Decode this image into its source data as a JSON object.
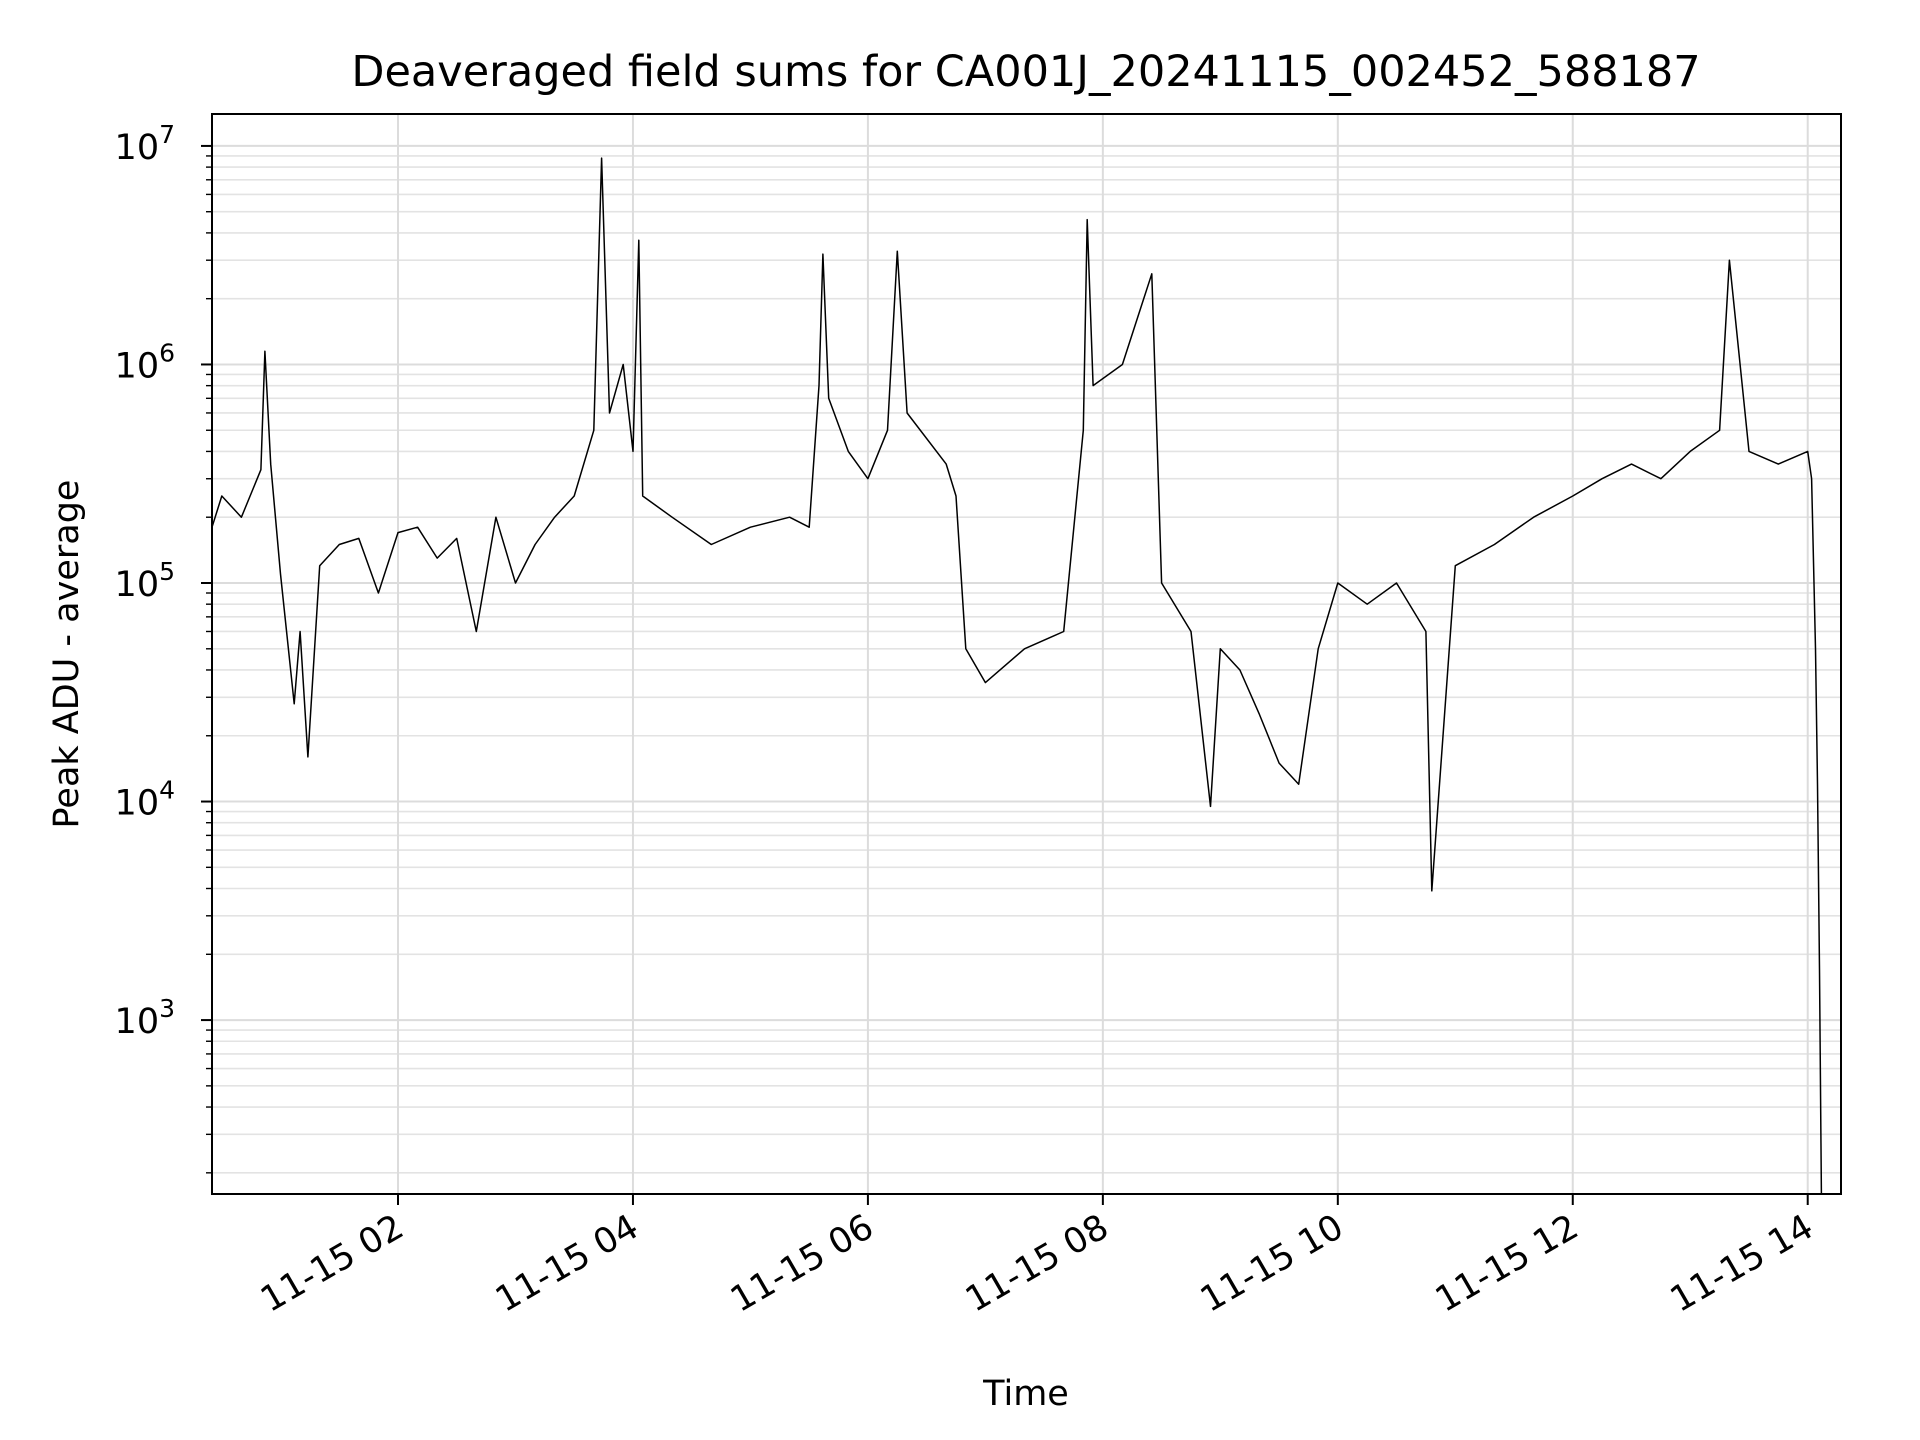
{
  "chart_data": {
    "type": "line",
    "title": "Deaveraged field sums for CA001J_20241115_002452_588187",
    "xlabel": "Time",
    "ylabel": "Peak ADU - average",
    "x_axis": {
      "kind": "datetime",
      "range": [
        "2024-11-15 00:25",
        "2024-11-15 14:17"
      ],
      "ticks": [
        {
          "value": "2024-11-15 02:00",
          "label": "11-15 02"
        },
        {
          "value": "2024-11-15 04:00",
          "label": "11-15 04"
        },
        {
          "value": "2024-11-15 06:00",
          "label": "11-15 06"
        },
        {
          "value": "2024-11-15 08:00",
          "label": "11-15 08"
        },
        {
          "value": "2024-11-15 10:00",
          "label": "11-15 10"
        },
        {
          "value": "2024-11-15 12:00",
          "label": "11-15 12"
        },
        {
          "value": "2024-11-15 14:00",
          "label": "11-15 14"
        }
      ]
    },
    "y_axis": {
      "scale": "log",
      "range": [
        160,
        14000000
      ],
      "ticks": [
        {
          "value": 1000,
          "base": "10",
          "exp": "3"
        },
        {
          "value": 10000,
          "base": "10",
          "exp": "4"
        },
        {
          "value": 100000,
          "base": "10",
          "exp": "5"
        },
        {
          "value": 1000000,
          "base": "10",
          "exp": "6"
        },
        {
          "value": 10000000,
          "base": "10",
          "exp": "7"
        }
      ]
    },
    "grid": true,
    "series": [
      {
        "color": "#000000",
        "points": [
          [
            "2024-11-15 00:25",
            180000
          ],
          [
            "2024-11-15 00:30",
            250000
          ],
          [
            "2024-11-15 00:40",
            200000
          ],
          [
            "2024-11-15 00:50",
            330000
          ],
          [
            "2024-11-15 00:52",
            1150000
          ],
          [
            "2024-11-15 00:55",
            350000
          ],
          [
            "2024-11-15 01:00",
            110000
          ],
          [
            "2024-11-15 01:07",
            28000
          ],
          [
            "2024-11-15 01:10",
            60000
          ],
          [
            "2024-11-15 01:14",
            16000
          ],
          [
            "2024-11-15 01:20",
            120000
          ],
          [
            "2024-11-15 01:30",
            150000
          ],
          [
            "2024-11-15 01:40",
            160000
          ],
          [
            "2024-11-15 01:50",
            90000
          ],
          [
            "2024-11-15 02:00",
            170000
          ],
          [
            "2024-11-15 02:10",
            180000
          ],
          [
            "2024-11-15 02:20",
            130000
          ],
          [
            "2024-11-15 02:30",
            160000
          ],
          [
            "2024-11-15 02:40",
            60000
          ],
          [
            "2024-11-15 02:50",
            200000
          ],
          [
            "2024-11-15 03:00",
            100000
          ],
          [
            "2024-11-15 03:10",
            150000
          ],
          [
            "2024-11-15 03:20",
            200000
          ],
          [
            "2024-11-15 03:30",
            250000
          ],
          [
            "2024-11-15 03:40",
            500000
          ],
          [
            "2024-11-15 03:44",
            8800000
          ],
          [
            "2024-11-15 03:48",
            600000
          ],
          [
            "2024-11-15 03:55",
            1000000
          ],
          [
            "2024-11-15 04:00",
            400000
          ],
          [
            "2024-11-15 04:03",
            3700000
          ],
          [
            "2024-11-15 04:05",
            250000
          ],
          [
            "2024-11-15 04:20",
            200000
          ],
          [
            "2024-11-15 04:40",
            150000
          ],
          [
            "2024-11-15 05:00",
            180000
          ],
          [
            "2024-11-15 05:20",
            200000
          ],
          [
            "2024-11-15 05:30",
            180000
          ],
          [
            "2024-11-15 05:35",
            800000
          ],
          [
            "2024-11-15 05:37",
            3200000
          ],
          [
            "2024-11-15 05:40",
            700000
          ],
          [
            "2024-11-15 05:50",
            400000
          ],
          [
            "2024-11-15 06:00",
            300000
          ],
          [
            "2024-11-15 06:10",
            500000
          ],
          [
            "2024-11-15 06:15",
            3300000
          ],
          [
            "2024-11-15 06:20",
            600000
          ],
          [
            "2024-11-15 06:40",
            350000
          ],
          [
            "2024-11-15 06:45",
            250000
          ],
          [
            "2024-11-15 06:50",
            50000
          ],
          [
            "2024-11-15 07:00",
            35000
          ],
          [
            "2024-11-15 07:20",
            50000
          ],
          [
            "2024-11-15 07:40",
            60000
          ],
          [
            "2024-11-15 07:50",
            500000
          ],
          [
            "2024-11-15 07:52",
            4600000
          ],
          [
            "2024-11-15 07:55",
            800000
          ],
          [
            "2024-11-15 08:10",
            1000000
          ],
          [
            "2024-11-15 08:25",
            2600000
          ],
          [
            "2024-11-15 08:30",
            100000
          ],
          [
            "2024-11-15 08:45",
            60000
          ],
          [
            "2024-11-15 08:55",
            9500
          ],
          [
            "2024-11-15 09:00",
            50000
          ],
          [
            "2024-11-15 09:10",
            40000
          ],
          [
            "2024-11-15 09:20",
            25000
          ],
          [
            "2024-11-15 09:30",
            15000
          ],
          [
            "2024-11-15 09:40",
            12000
          ],
          [
            "2024-11-15 09:50",
            50000
          ],
          [
            "2024-11-15 10:00",
            100000
          ],
          [
            "2024-11-15 10:15",
            80000
          ],
          [
            "2024-11-15 10:30",
            100000
          ],
          [
            "2024-11-15 10:45",
            60000
          ],
          [
            "2024-11-15 10:48",
            3900
          ],
          [
            "2024-11-15 11:00",
            120000
          ],
          [
            "2024-11-15 11:20",
            150000
          ],
          [
            "2024-11-15 11:40",
            200000
          ],
          [
            "2024-11-15 12:00",
            250000
          ],
          [
            "2024-11-15 12:15",
            300000
          ],
          [
            "2024-11-15 12:30",
            350000
          ],
          [
            "2024-11-15 12:45",
            300000
          ],
          [
            "2024-11-15 13:00",
            400000
          ],
          [
            "2024-11-15 13:15",
            500000
          ],
          [
            "2024-11-15 13:20",
            3000000
          ],
          [
            "2024-11-15 13:30",
            400000
          ],
          [
            "2024-11-15 13:45",
            350000
          ],
          [
            "2024-11-15 14:00",
            400000
          ],
          [
            "2024-11-15 14:02",
            300000
          ],
          [
            "2024-11-15 14:04",
            50000
          ],
          [
            "2024-11-15 14:05",
            12000
          ],
          [
            "2024-11-15 14:06",
            1700
          ],
          [
            "2024-11-15 14:07",
            160
          ]
        ]
      }
    ]
  }
}
